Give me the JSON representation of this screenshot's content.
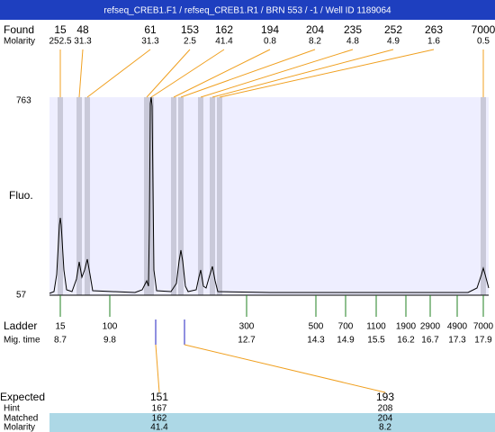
{
  "title": "refseq_CREB1.F1 / refseq_CREB1.R1 / BRN 553 / -1 / Well ID 1189064",
  "found": {
    "label": "Found",
    "sizes": [
      15,
      48,
      61,
      153,
      162,
      194,
      204,
      235,
      252,
      263,
      7000
    ],
    "molarity_label": "Molarity",
    "molarity": [
      252.5,
      31.3,
      31.3,
      2.5,
      41.4,
      0.8,
      8.2,
      4.8,
      4.9,
      1.6,
      0.5
    ]
  },
  "plot": {
    "y_label": "Fluo.",
    "y_max": 763,
    "y_min": 57
  },
  "ladder": {
    "label": "Ladder",
    "sizes": [
      15,
      100,
      300,
      500,
      700,
      1100,
      1900,
      2900,
      4900,
      7000
    ],
    "mig_label": "Mig. time",
    "mig_times": [
      8.7,
      9.8,
      12.7,
      14.3,
      14.9,
      15.5,
      16.2,
      16.7,
      17.3,
      17.9
    ]
  },
  "expected": {
    "label": "Expected",
    "values": [
      151,
      193
    ],
    "hint_label": "Hint",
    "hint": [
      167,
      208
    ],
    "matched_label": "Matched",
    "matched": [
      162,
      204
    ],
    "molarity_label": "Molarity",
    "molarity": [
      41.4,
      8.2
    ]
  }
}
